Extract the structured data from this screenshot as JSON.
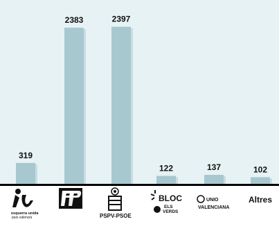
{
  "chart_data": {
    "type": "bar",
    "categories": [
      "Esquerra Unida del País Valencià",
      "PP",
      "PSPV-PSOE",
      "BLOC - Els Verds",
      "Unió Valenciana",
      "Altres"
    ],
    "values": [
      319,
      2383,
      2397,
      122,
      137,
      102
    ],
    "data_labels": [
      "319",
      "2383",
      "2397",
      "122",
      "137",
      "102"
    ],
    "category_labels": {
      "eu_small": "esquerra unida",
      "eu_small2": "país valencià",
      "pspv": "PSPV-PSOE",
      "bloc": "BLOC",
      "bloc_sub1": "ELS",
      "bloc_sub2": "VERDS",
      "uv_line1": "UNIO",
      "uv_line2": "VALENCIANA",
      "altres": "Altres"
    },
    "ylim": [
      0,
      2700
    ],
    "grid": false,
    "legend": "none",
    "colors": {
      "background": "#e7f2f4",
      "bar": "#a8c8d0",
      "bar_shadow": "#c7dde2",
      "baseline": "#000000",
      "label": "#111111"
    }
  }
}
